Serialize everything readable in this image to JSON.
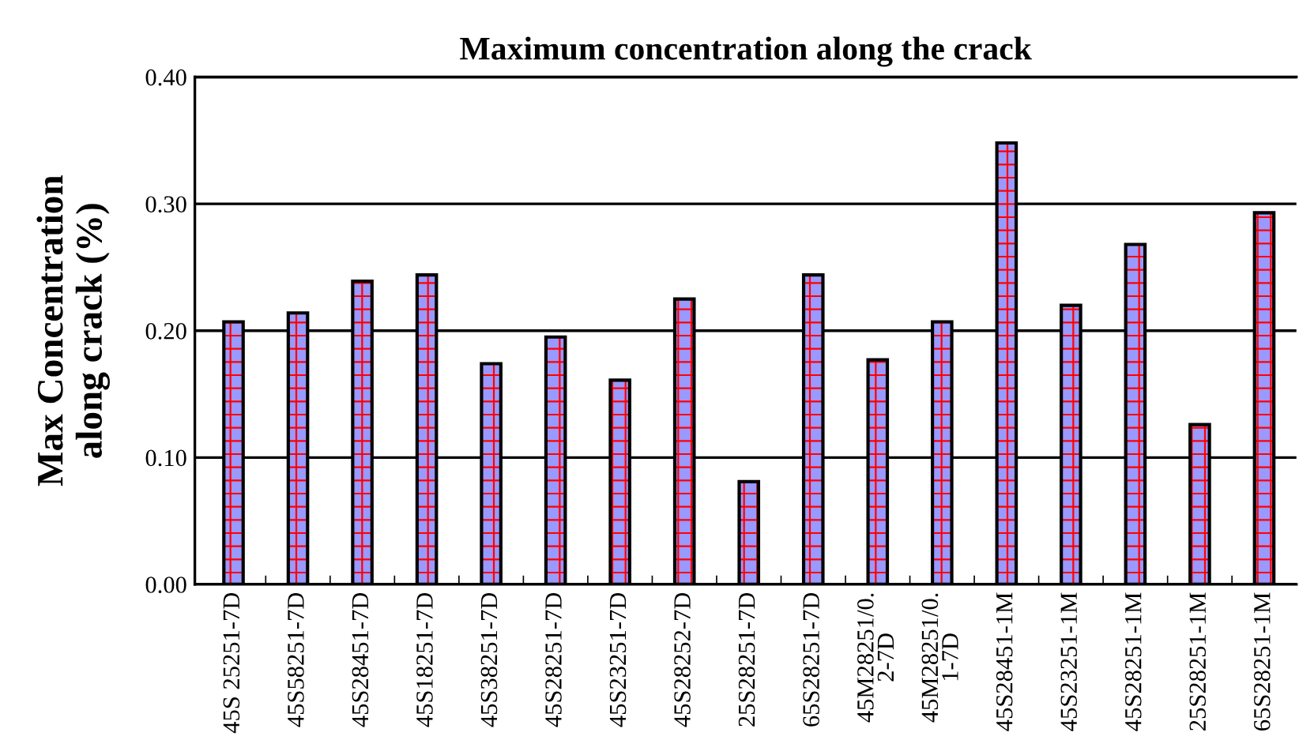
{
  "chart_data": {
    "type": "bar",
    "title": "Maximum concentration along the crack",
    "ylabel": "Max Concentration\nalong crack (%)",
    "categories": [
      "45S 25251-7D",
      "45S58251-7D",
      "45S28451-7D",
      "45S18251-7D",
      "45S38251-7D",
      "45S28251-7D",
      "45S23251-7D",
      "45S28252-7D",
      "25S28251-7D",
      "65S28251-7D",
      "45M28251/0.\n2-7D",
      "45M28251/0.\n1-7D",
      "45S28451-1M",
      "45S23251-1M",
      "45S28251-1M",
      "25S28251-1M",
      "65S28251-1M"
    ],
    "values": [
      0.207,
      0.214,
      0.239,
      0.244,
      0.174,
      0.195,
      0.161,
      0.225,
      0.081,
      0.244,
      0.177,
      0.207,
      0.348,
      0.22,
      0.268,
      0.126,
      0.293
    ],
    "color": "#ff0000",
    "ylim": [
      0,
      0.4
    ],
    "yticks": [
      {
        "value": 0,
        "label": "0.00"
      },
      {
        "value": 0.1,
        "label": "0.10"
      },
      {
        "value": 0.2,
        "label": "0.20"
      },
      {
        "value": 0.3,
        "label": "0.30"
      },
      {
        "value": 0.4,
        "label": "0.40"
      }
    ],
    "grid": "y",
    "legend": false
  }
}
